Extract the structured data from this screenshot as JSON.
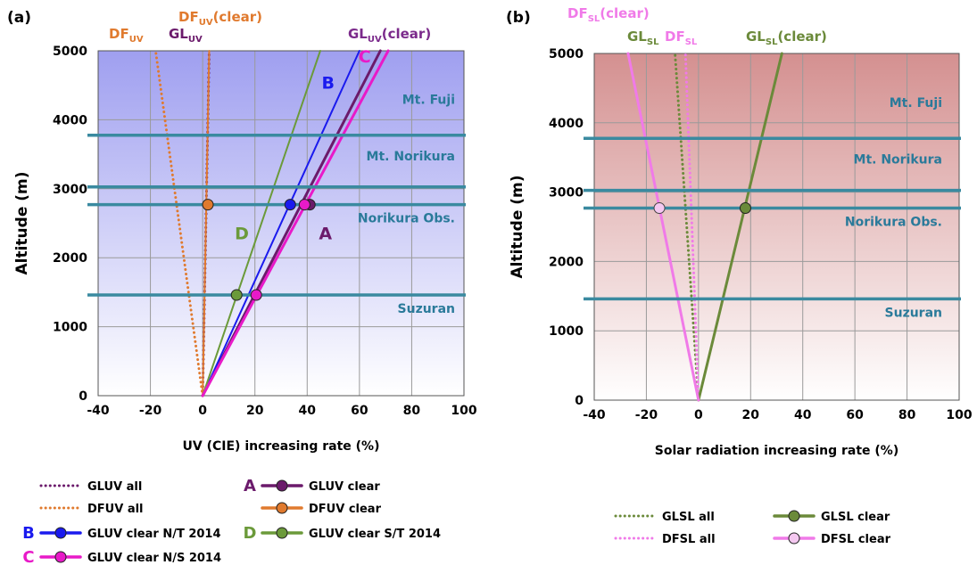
{
  "chart_data": [
    {
      "panel_label": "(a)",
      "type": "line",
      "xlabel": "UV (CIE) increasing rate (%)",
      "ylabel": "Altitude (m)",
      "xlim": [
        -40,
        100
      ],
      "ylim": [
        0,
        5000
      ],
      "x_ticks": [
        "-40",
        "-20",
        "0",
        "20",
        "40",
        "60",
        "80",
        "100"
      ],
      "y_ticks": [
        "0",
        "1000",
        "2000",
        "3000",
        "4000",
        "5000"
      ],
      "background": {
        "top": "#9f9ff0",
        "bottom": "#ffffff"
      },
      "grid": true,
      "reference_lines": [
        {
          "label": "Mt. Fuji",
          "altitude": 3776
        },
        {
          "label": "Mt. Norikura",
          "altitude": 3026
        },
        {
          "label": "Norikura Obs.",
          "altitude": 2770
        },
        {
          "label": "Suzuran",
          "altitude": 1460
        }
      ],
      "line_labels": [
        {
          "main": "DF",
          "sub": "UV",
          "suffix": "",
          "color": "#e07a2e"
        },
        {
          "main": "GL",
          "sub": "UV",
          "suffix": "",
          "color": "#6b1a6b"
        },
        {
          "main": "DF",
          "sub": "UV",
          "suffix": "(clear)",
          "color": "#e07a2e"
        },
        {
          "main": "GL",
          "sub": "UV",
          "suffix": "(clear)",
          "color": "#7b2a8b"
        }
      ],
      "series": [
        {
          "name": "GLUV all",
          "style": "dotted",
          "color": "#6b1a6b",
          "x": [
            0,
            2.5
          ],
          "y": [
            0,
            5000
          ]
        },
        {
          "name": "DFUV all",
          "style": "dotted",
          "color": "#e07a2e",
          "x": [
            0,
            -18
          ],
          "y": [
            0,
            5000
          ]
        },
        {
          "name": "GLUV clear",
          "tag": "A",
          "style": "solid",
          "color": "#6b1a6b",
          "x": [
            0,
            68
          ],
          "y": [
            0,
            5000
          ],
          "markers": [
            {
              "x": 41,
              "y": 2770
            }
          ]
        },
        {
          "name": "DFUV clear",
          "style": "solid",
          "color": "#e07a2e",
          "x": [
            0,
            2.5
          ],
          "y": [
            0,
            5000
          ],
          "markers": [
            {
              "x": 2,
              "y": 2770
            }
          ]
        },
        {
          "name": "GLUV clear N/T 2014",
          "tag": "B",
          "style": "solid",
          "color": "#1a1aee",
          "x": [
            0,
            60
          ],
          "y": [
            0,
            5000
          ],
          "markers": [
            {
              "x": 33.5,
              "y": 2770
            }
          ]
        },
        {
          "name": "GLUV clear S/T 2014",
          "tag": "D",
          "style": "solid",
          "color": "#6b9a3a",
          "x": [
            0,
            45
          ],
          "y": [
            0,
            5000
          ],
          "markers": [
            {
              "x": 13,
              "y": 1460
            }
          ]
        },
        {
          "name": "GLUV clear N/S 2014",
          "tag": "C",
          "style": "solid",
          "color": "#e81ac8",
          "x": [
            0,
            71
          ],
          "y": [
            0,
            5000
          ],
          "markers": [
            {
              "x": 39,
              "y": 2770
            },
            {
              "x": 20.5,
              "y": 1460
            }
          ]
        }
      ],
      "curve_tags": [
        {
          "text": "A",
          "color": "#6b1a6b",
          "x": 47,
          "y": 2270
        },
        {
          "text": "B",
          "color": "#1a1aee",
          "x": 48,
          "y": 4450
        },
        {
          "text": "C",
          "color": "#e81ac8",
          "x": 62,
          "y": 4830
        },
        {
          "text": "D",
          "color": "#6b9a3a",
          "x": 15,
          "y": 2270
        }
      ],
      "legend": [
        {
          "label": "GLUV all",
          "style": "dotted",
          "color": "#6b1a6b",
          "marker": false,
          "tag": ""
        },
        {
          "label": "GLUV clear",
          "style": "solid",
          "color": "#6b1a6b",
          "marker": true,
          "tag": "A"
        },
        {
          "label": "DFUV all",
          "style": "dotted",
          "color": "#e07a2e",
          "marker": false,
          "tag": ""
        },
        {
          "label": "DFUV clear",
          "style": "solid",
          "color": "#e07a2e",
          "marker": true,
          "tag": ""
        },
        {
          "label": "GLUV clear N/T 2014",
          "style": "solid",
          "color": "#1a1aee",
          "marker": true,
          "tag": "B"
        },
        {
          "label": "GLUV clear S/T 2014",
          "style": "solid",
          "color": "#6b9a3a",
          "marker": true,
          "tag": "D"
        },
        {
          "label": "GLUV clear N/S 2014",
          "style": "solid",
          "color": "#e81ac8",
          "marker": true,
          "tag": "C"
        }
      ]
    },
    {
      "panel_label": "(b)",
      "type": "line",
      "xlabel": "Solar radiation increasing rate (%)",
      "ylabel": "Altitude (m)",
      "xlim": [
        -40,
        100
      ],
      "ylim": [
        0,
        5000
      ],
      "x_ticks": [
        "-40",
        "-20",
        "0",
        "20",
        "40",
        "60",
        "80",
        "100"
      ],
      "y_ticks": [
        "0",
        "1000",
        "2000",
        "3000",
        "4000",
        "5000"
      ],
      "background": {
        "top": "#d49090",
        "bottom": "#ffffff"
      },
      "grid": true,
      "reference_lines": [
        {
          "label": "Mt. Fuji",
          "altitude": 3776
        },
        {
          "label": "Mt. Norikura",
          "altitude": 3026
        },
        {
          "label": "Norikura Obs.",
          "altitude": 2770
        },
        {
          "label": "Suzuran",
          "altitude": 1460
        }
      ],
      "line_labels": [
        {
          "main": "DF",
          "sub": "SL",
          "suffix": "(clear)",
          "color": "#f07ae8"
        },
        {
          "main": "GL",
          "sub": "SL",
          "suffix": "",
          "color": "#6b8a3a"
        },
        {
          "main": "DF",
          "sub": "SL",
          "suffix": "",
          "color": "#f07ae8"
        },
        {
          "main": "GL",
          "sub": "SL",
          "suffix": "(clear)",
          "color": "#6b8a3a"
        }
      ],
      "series": [
        {
          "name": "GLSL all",
          "style": "dotted",
          "color": "#6b8a3a",
          "x": [
            0,
            -9
          ],
          "y": [
            0,
            5000
          ]
        },
        {
          "name": "DFSL all",
          "style": "dotted",
          "color": "#f07ae8",
          "x": [
            0,
            -5
          ],
          "y": [
            0,
            5000
          ]
        },
        {
          "name": "GLSL clear",
          "style": "solid",
          "color": "#6b8a3a",
          "x": [
            0,
            32
          ],
          "y": [
            0,
            5000
          ],
          "markers": [
            {
              "x": 18,
              "y": 2770
            }
          ]
        },
        {
          "name": "DFSL clear",
          "style": "solid",
          "color": "#f07ae8",
          "x": [
            0,
            -27
          ],
          "y": [
            0,
            5000
          ],
          "markers": [
            {
              "x": -15,
              "y": 2770
            }
          ]
        }
      ],
      "legend": [
        {
          "label": "GLSL all",
          "style": "dotted",
          "color": "#6b8a3a",
          "marker": false,
          "tag": ""
        },
        {
          "label": "GLSL clear",
          "style": "solid",
          "color": "#6b8a3a",
          "marker": true,
          "tag": ""
        },
        {
          "label": "DFSL all",
          "style": "dotted",
          "color": "#f07ae8",
          "marker": false,
          "tag": ""
        },
        {
          "label": "DFSL clear",
          "style": "solid",
          "color": "#f07ae8",
          "marker": true,
          "tag": ""
        }
      ]
    }
  ],
  "colors": {
    "reference_line": "#3a8aa0",
    "reference_label": "#2a7a9a",
    "grid": "#9a9a9a",
    "axis_text": "#000000"
  }
}
